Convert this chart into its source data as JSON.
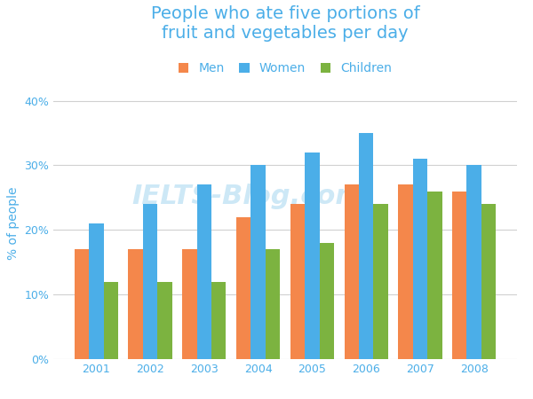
{
  "title": "People who ate five portions of\nfruit and vegetables per day",
  "ylabel": "% of people",
  "years": [
    2001,
    2002,
    2003,
    2004,
    2005,
    2006,
    2007,
    2008
  ],
  "men": [
    17,
    17,
    17,
    22,
    24,
    27,
    27,
    26
  ],
  "women": [
    21,
    24,
    27,
    30,
    32,
    35,
    31,
    30
  ],
  "children": [
    12,
    12,
    12,
    17,
    18,
    24,
    26,
    24
  ],
  "bar_colors": {
    "Men": "#F4874B",
    "Women": "#4BAEE8",
    "Children": "#7CB340"
  },
  "title_color": "#4BAEE8",
  "axis_label_color": "#4BAEE8",
  "tick_color": "#4BAEE8",
  "grid_color": "#d0d0d0",
  "ylim": [
    0,
    42
  ],
  "yticks": [
    0,
    10,
    20,
    30,
    40
  ],
  "ytick_labels": [
    "0%",
    "10%",
    "20%",
    "30%",
    "40%"
  ],
  "background_color": "#ffffff",
  "watermark": "IELTS-Blog.com",
  "title_fontsize": 14,
  "legend_fontsize": 10,
  "axis_label_fontsize": 10,
  "tick_fontsize": 9
}
